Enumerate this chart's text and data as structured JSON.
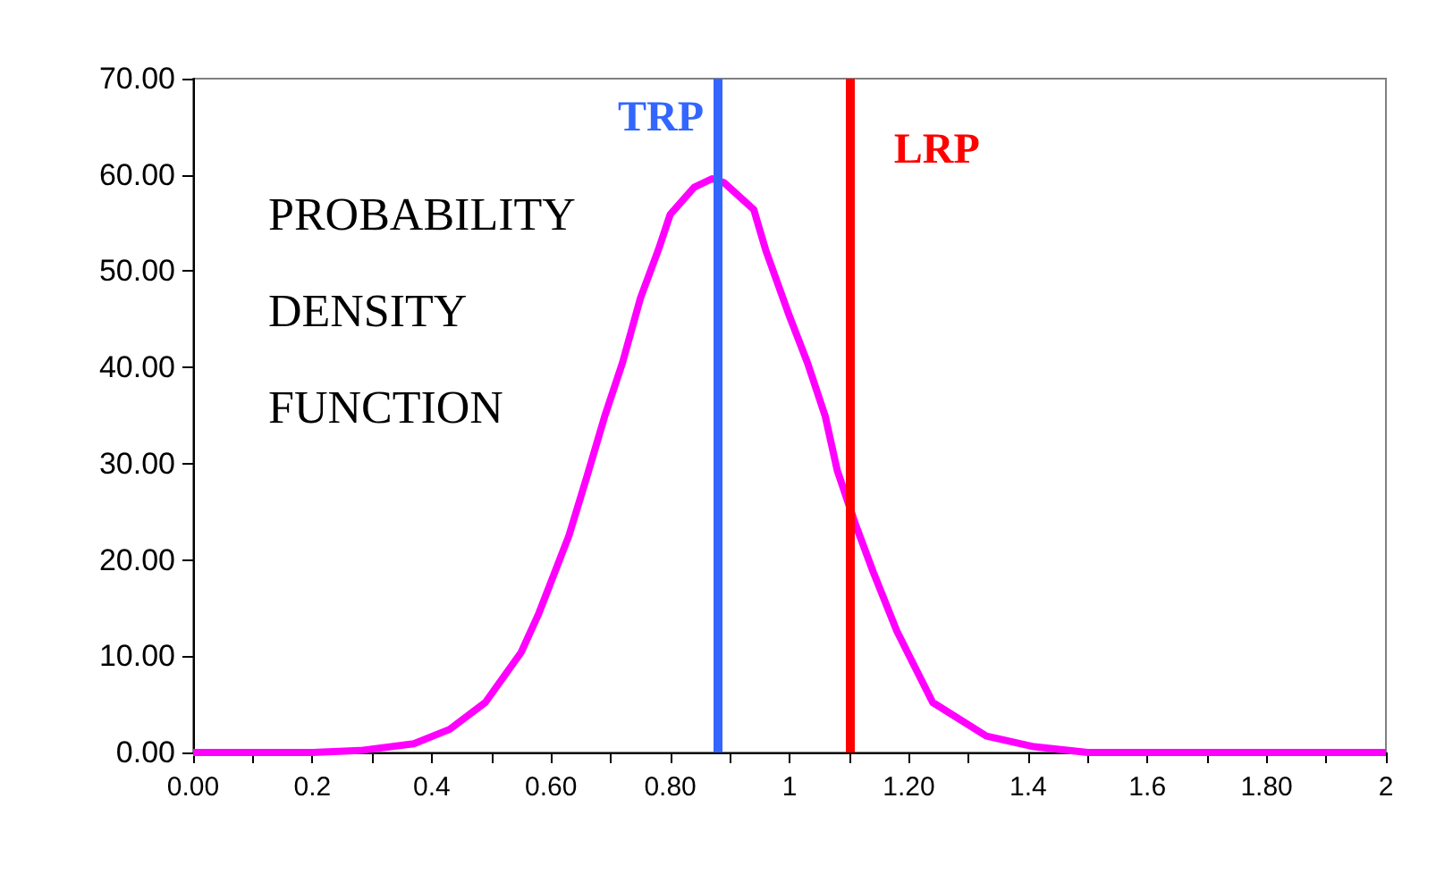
{
  "chart_data": {
    "type": "line",
    "xlim": [
      0,
      2
    ],
    "ylim": [
      0,
      70
    ],
    "xticks": [
      {
        "value": 0,
        "label": "0.00"
      },
      {
        "value": 0.1,
        "label": null
      },
      {
        "value": 0.2,
        "label": "0.2"
      },
      {
        "value": 0.3,
        "label": null
      },
      {
        "value": 0.4,
        "label": "0.4"
      },
      {
        "value": 0.5,
        "label": null
      },
      {
        "value": 0.6,
        "label": "0.60"
      },
      {
        "value": 0.7,
        "label": null
      },
      {
        "value": 0.8,
        "label": "0.80"
      },
      {
        "value": 0.9,
        "label": null
      },
      {
        "value": 1,
        "label": "1"
      },
      {
        "value": 1.1,
        "label": null
      },
      {
        "value": 1.2,
        "label": "1.20"
      },
      {
        "value": 1.3,
        "label": null
      },
      {
        "value": 1.4,
        "label": "1.4"
      },
      {
        "value": 1.5,
        "label": null
      },
      {
        "value": 1.6,
        "label": "1.6"
      },
      {
        "value": 1.7,
        "label": null
      },
      {
        "value": 1.8,
        "label": "1.80"
      },
      {
        "value": 1.9,
        "label": null
      },
      {
        "value": 2,
        "label": "2"
      }
    ],
    "yticks": [
      {
        "value": 0,
        "label": "0.00"
      },
      {
        "value": 10,
        "label": "10.00"
      },
      {
        "value": 20,
        "label": "20.00"
      },
      {
        "value": 30,
        "label": "30.00"
      },
      {
        "value": 40,
        "label": "40.00"
      },
      {
        "value": 50,
        "label": "50.00"
      },
      {
        "value": 60,
        "label": "60.00"
      },
      {
        "value": 70,
        "label": "70.00"
      }
    ],
    "x": [
      0,
      0.2,
      0.28,
      0.37,
      0.43,
      0.49,
      0.55,
      0.58,
      0.63,
      0.66,
      0.69,
      0.72,
      0.75,
      0.78,
      0.8,
      0.84,
      0.87,
      0.89,
      0.94,
      0.96,
      1.0,
      1.03,
      1.06,
      1.08,
      1.11,
      1.14,
      1.18,
      1.24,
      1.33,
      1.41,
      1.5,
      1.6,
      1.8,
      2
    ],
    "series": [
      {
        "color": "#ff00ff",
        "values": [
          0,
          0,
          0.2,
          0.9,
          2.4,
          5.2,
          10.4,
          14.5,
          22.5,
          28.6,
          34.9,
          40.5,
          47.2,
          52.2,
          55.9,
          58.7,
          59.6,
          59.2,
          56.4,
          52.2,
          45.3,
          40.5,
          34.9,
          29.3,
          23.8,
          18.8,
          12.6,
          5.2,
          1.7,
          0.6,
          0,
          0,
          0,
          0
        ]
      }
    ],
    "marker": "none",
    "grid": false,
    "ref_lines": [
      {
        "axis": "x",
        "value": 0.88,
        "label": "TRP",
        "color": "#3366ff"
      },
      {
        "axis": "x",
        "value": 1.1,
        "label": "LRP",
        "color": "#ff0000"
      }
    ],
    "annotations": [
      "PROBABILITY",
      "DENSITY",
      "FUNCTION"
    ]
  }
}
